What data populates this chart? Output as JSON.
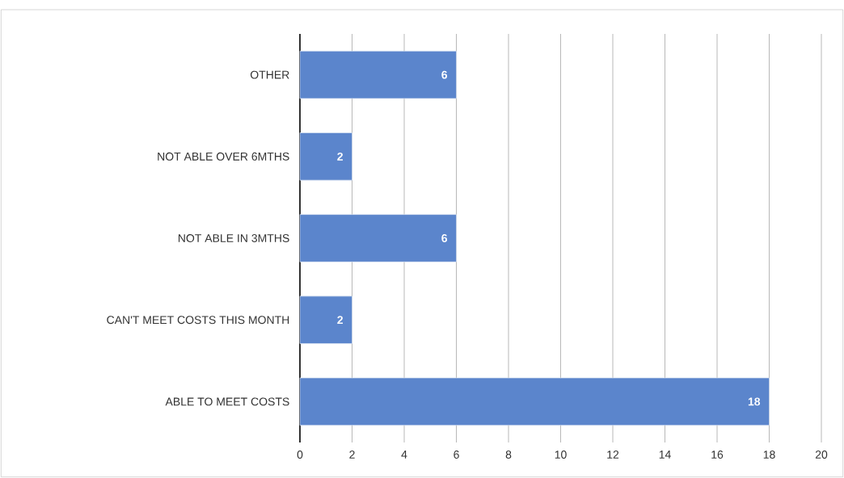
{
  "chart_data": {
    "type": "bar",
    "orientation": "horizontal",
    "categories": [
      "OTHER",
      "NOT ABLE OVER 6MTHS",
      "NOT ABLE IN 3MTHS",
      "CAN'T MEET COSTS THIS MONTH",
      "ABLE TO MEET COSTS"
    ],
    "values": [
      6,
      2,
      6,
      2,
      18
    ],
    "color": "#5b85cc",
    "xlim": [
      0,
      20
    ],
    "xticks": [
      0,
      2,
      4,
      6,
      8,
      10,
      12,
      14,
      16,
      18,
      20
    ],
    "grid": "x",
    "data_labels": true
  }
}
